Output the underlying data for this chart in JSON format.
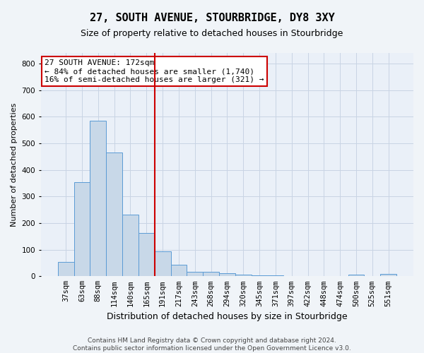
{
  "title": "27, SOUTH AVENUE, STOURBRIDGE, DY8 3XY",
  "subtitle": "Size of property relative to detached houses in Stourbridge",
  "xlabel": "Distribution of detached houses by size in Stourbridge",
  "ylabel": "Number of detached properties",
  "categories": [
    "37sqm",
    "63sqm",
    "88sqm",
    "114sqm",
    "140sqm",
    "165sqm",
    "191sqm",
    "217sqm",
    "243sqm",
    "268sqm",
    "294sqm",
    "320sqm",
    "345sqm",
    "371sqm",
    "397sqm",
    "422sqm",
    "448sqm",
    "474sqm",
    "500sqm",
    "525sqm",
    "551sqm"
  ],
  "values": [
    55,
    355,
    585,
    465,
    232,
    162,
    95,
    42,
    17,
    17,
    12,
    6,
    4,
    3,
    2,
    2,
    1,
    0,
    7,
    0,
    8
  ],
  "bar_color": "#c8d8e8",
  "bar_edge_color": "#5b9bd5",
  "vline_x": 5.5,
  "vline_color": "#cc0000",
  "annotation_line1": "27 SOUTH AVENUE: 172sqm",
  "annotation_line2": "← 84% of detached houses are smaller (1,740)",
  "annotation_line3": "16% of semi-detached houses are larger (321) →",
  "annotation_box_color": "#ffffff",
  "annotation_box_edge": "#cc0000",
  "grid_color": "#c8d4e4",
  "background_color": "#eaf0f8",
  "fig_background": "#f0f4f8",
  "footer": "Contains HM Land Registry data © Crown copyright and database right 2024.\nContains public sector information licensed under the Open Government Licence v3.0.",
  "ylim": [
    0,
    840
  ],
  "yticks": [
    0,
    100,
    200,
    300,
    400,
    500,
    600,
    700,
    800
  ],
  "title_fontsize": 11,
  "subtitle_fontsize": 9,
  "ylabel_fontsize": 8,
  "xlabel_fontsize": 9,
  "tick_fontsize": 7.5,
  "annotation_fontsize": 8
}
